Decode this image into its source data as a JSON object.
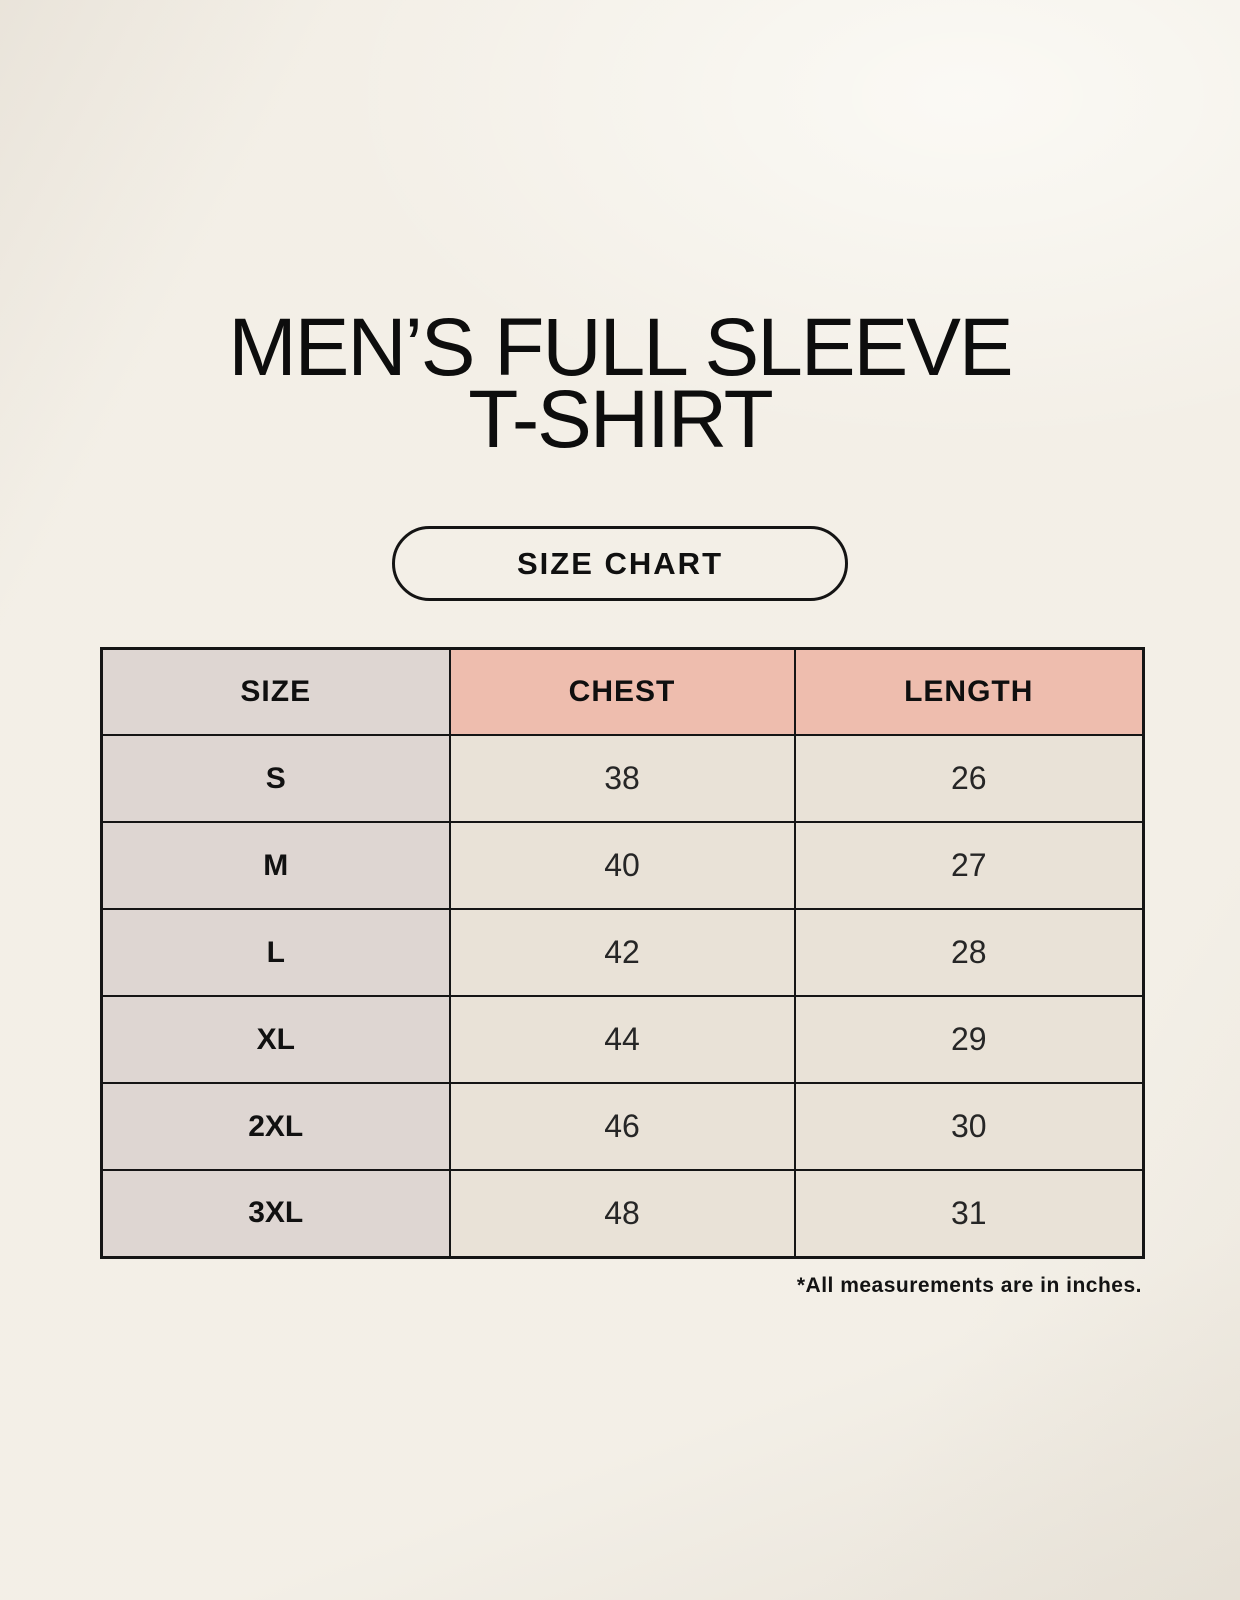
{
  "header": {
    "title_line1": "MEN’S FULL SLEEVE",
    "title_line2": "T-SHIRT",
    "badge": "SIZE CHART"
  },
  "colors": {
    "page_background": "#f8f5ee",
    "size_column_fill": "#ded6d2",
    "accent_header_fill": "#eebdae",
    "data_cell_fill": "#e9e2d7",
    "border": "#151515",
    "text": "#141414"
  },
  "chart_data": {
    "type": "table",
    "title": "MEN’S FULL SLEEVE T-SHIRT",
    "subtitle": "SIZE CHART",
    "columns": [
      "SIZE",
      "CHEST",
      "LENGTH"
    ],
    "rows": [
      [
        "S",
        "38",
        "26"
      ],
      [
        "M",
        "40",
        "27"
      ],
      [
        "L",
        "42",
        "28"
      ],
      [
        "XL",
        "44",
        "29"
      ],
      [
        "2XL",
        "46",
        "30"
      ],
      [
        "3XL",
        "48",
        "31"
      ]
    ],
    "note": "*All measurements are in inches.",
    "units": "inches"
  }
}
